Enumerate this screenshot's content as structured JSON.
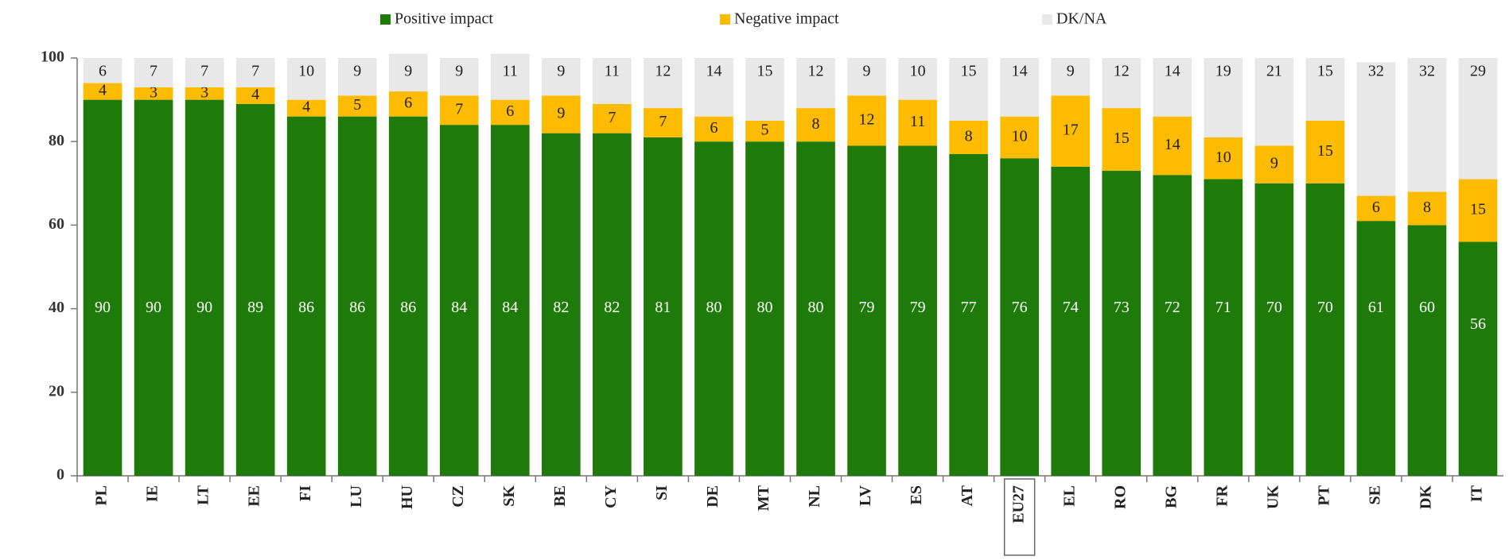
{
  "chart_data": {
    "type": "stacked_bar",
    "categories": [
      "PL",
      "IE",
      "LT",
      "EE",
      "FI",
      "LU",
      "HU",
      "CZ",
      "SK",
      "BE",
      "CY",
      "SI",
      "DE",
      "MT",
      "NL",
      "LV",
      "ES",
      "AT",
      "EU27",
      "EL",
      "RO",
      "BG",
      "FR",
      "UK",
      "PT",
      "SE",
      "DK",
      "IT"
    ],
    "series": [
      {
        "name": "Positive impact",
        "color": "#1e7b0a",
        "values": [
          90,
          90,
          90,
          89,
          86,
          86,
          86,
          84,
          84,
          82,
          82,
          81,
          80,
          80,
          80,
          79,
          79,
          77,
          76,
          74,
          73,
          72,
          71,
          70,
          70,
          61,
          60,
          56
        ]
      },
      {
        "name": "Negative impact",
        "color": "#ffbb00",
        "values": [
          4,
          3,
          3,
          4,
          4,
          5,
          6,
          7,
          6,
          9,
          7,
          7,
          6,
          5,
          8,
          12,
          11,
          8,
          10,
          17,
          15,
          14,
          10,
          9,
          15,
          6,
          8,
          15
        ]
      },
      {
        "name": "DK/NA",
        "color": "#e8e8e8",
        "values": [
          6,
          7,
          7,
          7,
          10,
          9,
          9,
          9,
          11,
          9,
          11,
          12,
          14,
          15,
          12,
          9,
          10,
          15,
          14,
          9,
          12,
          14,
          19,
          21,
          15,
          32,
          32,
          29
        ]
      }
    ],
    "ylim": [
      0,
      100
    ],
    "yticks": [
      0,
      20,
      40,
      60,
      80,
      100
    ],
    "legend": "top"
  }
}
